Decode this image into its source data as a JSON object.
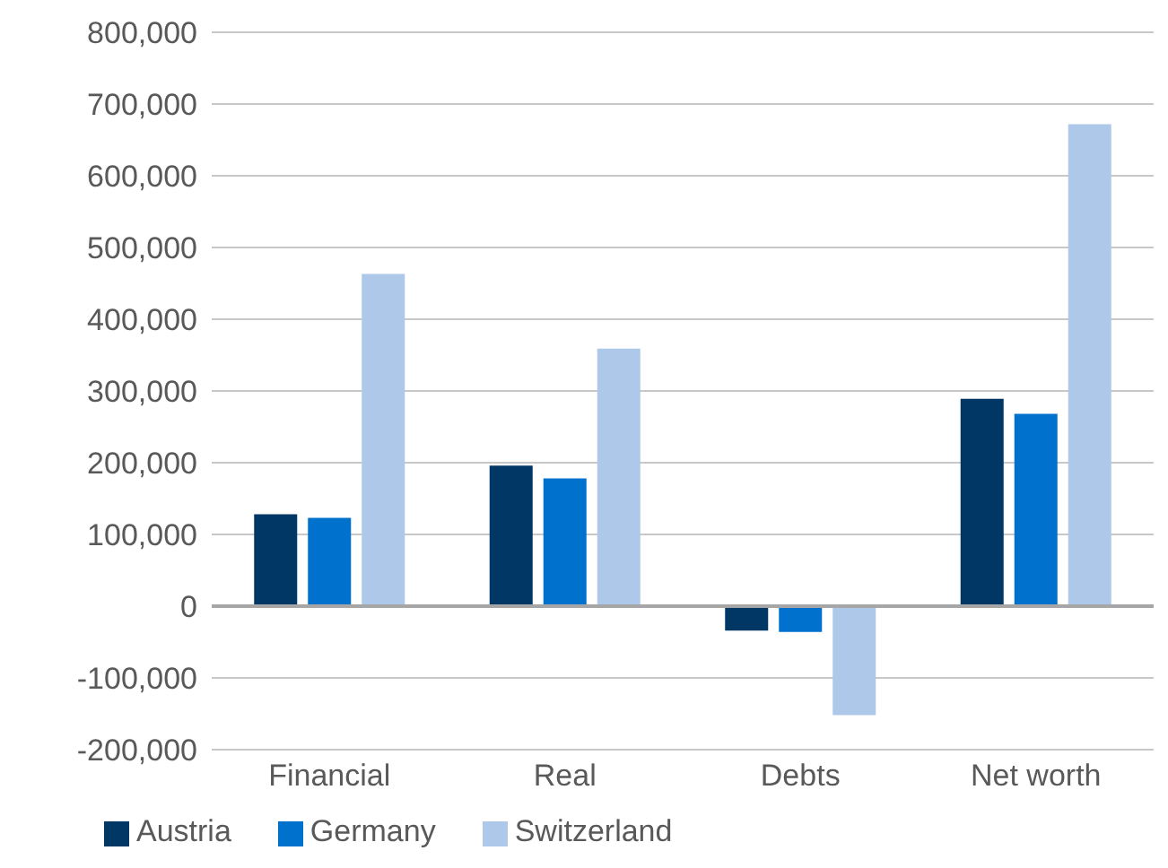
{
  "chart_data": {
    "type": "bar",
    "categories": [
      "Financial",
      "Real",
      "Debts",
      "Net worth"
    ],
    "series": [
      {
        "name": "Austria",
        "color": "#003764",
        "values": [
          128000,
          196000,
          -34000,
          289000
        ]
      },
      {
        "name": "Germany",
        "color": "#0072ce",
        "values": [
          123000,
          178000,
          -36000,
          268000
        ]
      },
      {
        "name": "Switzerland",
        "color": "#adc8e8",
        "values": [
          463000,
          359000,
          -152000,
          672000
        ]
      }
    ],
    "ylim": [
      -200000,
      800000
    ],
    "yticks": [
      {
        "value": -200000,
        "label": "-200,000"
      },
      {
        "value": -100000,
        "label": "-100,000"
      },
      0,
      {
        "value": 100000,
        "label": "100,000"
      },
      {
        "value": 200000,
        "label": "200,000"
      },
      {
        "value": 300000,
        "label": "300,000"
      },
      {
        "value": 400000,
        "label": "400,000"
      },
      {
        "value": 500000,
        "label": "500,000"
      },
      {
        "value": 600000,
        "label": "600,000"
      },
      {
        "value": 700000,
        "label": "700,000"
      },
      {
        "value": 800000,
        "label": "800,000"
      }
    ],
    "grid": "y",
    "legend": "bottom left"
  }
}
